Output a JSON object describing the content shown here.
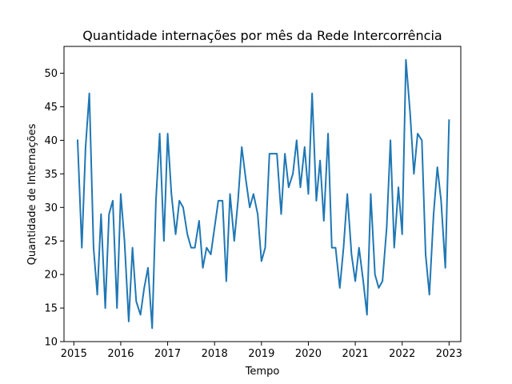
{
  "chart_data": {
    "type": "line",
    "title": "Quantidade internações por mês da Rede Intercorrência",
    "xlabel": "Tempo",
    "ylabel": "Quantidade de Internações",
    "xlim": [
      2014.79,
      2023.25
    ],
    "ylim": [
      10,
      54
    ],
    "xticks": [
      2015,
      2016,
      2017,
      2018,
      2019,
      2020,
      2021,
      2022,
      2023
    ],
    "xtick_labels": [
      "2015",
      "2016",
      "2017",
      "2018",
      "2019",
      "2020",
      "2021",
      "2022",
      "2023"
    ],
    "yticks": [
      10,
      15,
      20,
      25,
      30,
      35,
      40,
      45,
      50
    ],
    "grid": false,
    "series": [
      {
        "color": "#1f77b4",
        "x": [
          2015.08,
          2015.17,
          2015.25,
          2015.33,
          2015.42,
          2015.5,
          2015.58,
          2015.67,
          2015.75,
          2015.83,
          2015.92,
          2016.0,
          2016.08,
          2016.17,
          2016.25,
          2016.33,
          2016.42,
          2016.5,
          2016.58,
          2016.67,
          2016.75,
          2016.83,
          2016.92,
          2017.0,
          2017.08,
          2017.17,
          2017.25,
          2017.33,
          2017.42,
          2017.5,
          2017.58,
          2017.67,
          2017.75,
          2017.83,
          2017.92,
          2018.0,
          2018.08,
          2018.17,
          2018.25,
          2018.33,
          2018.42,
          2018.5,
          2018.58,
          2018.67,
          2018.75,
          2018.83,
          2018.92,
          2019.0,
          2019.08,
          2019.17,
          2019.25,
          2019.33,
          2019.42,
          2019.5,
          2019.58,
          2019.67,
          2019.75,
          2019.83,
          2019.92,
          2020.0,
          2020.08,
          2020.17,
          2020.25,
          2020.33,
          2020.42,
          2020.5,
          2020.58,
          2020.67,
          2020.75,
          2020.83,
          2020.92,
          2021.0,
          2021.08,
          2021.17,
          2021.25,
          2021.33,
          2021.42,
          2021.5,
          2021.58,
          2021.67,
          2021.75,
          2021.83,
          2021.92,
          2022.0,
          2022.08,
          2022.17,
          2022.25,
          2022.33,
          2022.42,
          2022.5,
          2022.58,
          2022.67,
          2022.75,
          2022.83,
          2022.92,
          2023.0
        ],
        "y": [
          40,
          24,
          39,
          47,
          24,
          17,
          29,
          15,
          29,
          31,
          15,
          32,
          25,
          13,
          24,
          16,
          14,
          18,
          21,
          12,
          31,
          41,
          25,
          41,
          32,
          26,
          31,
          30,
          26,
          24,
          24,
          28,
          21,
          24,
          23,
          27,
          31,
          31,
          19,
          32,
          25,
          31,
          39,
          34,
          30,
          32,
          29,
          22,
          24,
          38,
          38,
          38,
          29,
          38,
          33,
          35,
          40,
          33,
          39,
          32,
          47,
          31,
          37,
          28,
          41,
          24,
          24,
          18,
          24,
          32,
          23,
          19,
          24,
          19,
          14,
          32,
          20,
          18,
          19,
          27,
          40,
          24,
          33,
          26,
          52,
          44,
          35,
          41,
          40,
          23,
          17,
          29,
          36,
          31,
          21,
          43
        ]
      }
    ]
  }
}
